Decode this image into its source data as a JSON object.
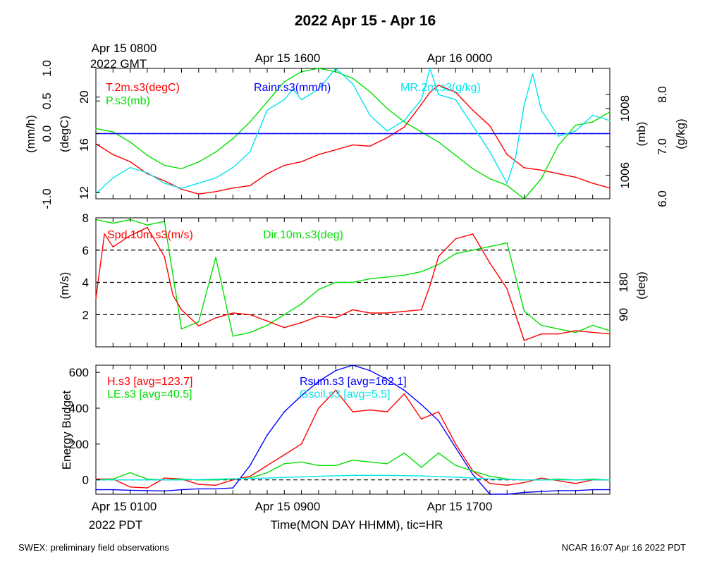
{
  "title": "2022 Apr 15 - Apr 16",
  "top_axis": {
    "first_label": [
      "Apr 15 0800",
      "2022 GMT"
    ],
    "labels": [
      "Apr 15 1600",
      "Apr 16 0000"
    ]
  },
  "bottom_axis": {
    "first_label": [
      "Apr 15 0100",
      "2022 PDT"
    ],
    "labels": [
      "Apr 15 0900",
      "Apr 15 1700"
    ],
    "xlabel": "Time(MON DAY HHMM), tic=HR"
  },
  "footer": {
    "left": "SWEX: preliminary field observations",
    "right": "NCAR 16:07 Apr 16 2022 PDT"
  },
  "colors": {
    "red": "#ff0000",
    "green": "#00e000",
    "blue": "#0000ff",
    "cyan": "#00e5ee",
    "black": "#000000"
  },
  "chart_data": [
    {
      "type": "line",
      "panel": "temperature-pressure-rain-mixing-ratio",
      "x_unit": "hours since Apr 15 0100 PDT",
      "xlim": [
        0,
        30
      ],
      "axes": {
        "rain": {
          "label": "(mm/h)",
          "ticks": [
            "-1.0",
            "0.0",
            "0.5",
            "1.0"
          ],
          "tick_values": [
            -1.0,
            0.0,
            0.5,
            1.0
          ],
          "ylim": [
            -1.0,
            1.0
          ]
        },
        "temp": {
          "label": "(degC)",
          "ticks": [
            "12",
            "16",
            "20"
          ],
          "tick_values": [
            12,
            16,
            20
          ],
          "ylim": [
            11.5,
            22.4
          ]
        },
        "press": {
          "label": "(mb)",
          "ticks": [
            "1006",
            "1008"
          ],
          "tick_values": [
            1006,
            1008
          ],
          "ylim": [
            1005.3,
            1009.2
          ]
        },
        "mr": {
          "label": "(g/kg)",
          "ticks": [
            "6.0",
            "7.0",
            "8.0"
          ],
          "tick_values": [
            6.0,
            7.0,
            8.0
          ],
          "ylim": [
            6.0,
            8.5
          ]
        }
      },
      "legend": [
        {
          "text": "T.2m.s3(degC)",
          "color": "red"
        },
        {
          "text": "P.s3(mb)",
          "color": "green"
        },
        {
          "text": "Rainr.s3(mm/h)",
          "color": "blue"
        },
        {
          "text": "MR.2m.s3(g/kg)",
          "color": "cyan"
        }
      ],
      "reference_lines": [
        {
          "axis": "rain",
          "value": 0.0,
          "style": "dashed-black"
        }
      ],
      "series": [
        {
          "name": "T.2m.s3(degC)",
          "axis": "temp",
          "color": "red",
          "x": [
            0,
            1,
            2,
            3,
            4,
            5,
            6,
            7,
            8,
            9,
            10,
            11,
            12,
            13,
            14,
            15,
            16,
            17,
            18,
            19,
            19.5,
            20,
            21,
            22,
            23,
            24,
            25,
            26,
            27,
            28,
            29,
            30
          ],
          "y": [
            16.1,
            15.2,
            14.6,
            13.6,
            13.0,
            12.3,
            11.9,
            12.1,
            12.4,
            12.6,
            13.6,
            14.3,
            14.6,
            15.2,
            15.6,
            16.0,
            15.9,
            16.6,
            17.5,
            19.4,
            20.4,
            21.0,
            20.4,
            18.9,
            17.6,
            15.2,
            14.1,
            13.9,
            13.6,
            13.3,
            12.8,
            12.4
          ]
        },
        {
          "name": "P.s3(mb)",
          "axis": "press",
          "color": "green",
          "x": [
            0,
            1,
            2,
            3,
            4,
            5,
            6,
            7,
            8,
            9,
            10,
            11,
            12,
            13,
            14,
            15,
            16,
            17,
            18,
            19,
            20,
            21,
            22,
            23,
            24,
            25,
            26,
            27,
            28,
            29,
            30
          ],
          "y": [
            1007.4,
            1007.3,
            1007.0,
            1006.6,
            1006.3,
            1006.2,
            1006.4,
            1006.7,
            1007.1,
            1007.6,
            1008.2,
            1008.8,
            1009.1,
            1009.2,
            1009.1,
            1008.9,
            1008.5,
            1008.0,
            1007.6,
            1007.3,
            1007.0,
            1006.6,
            1006.2,
            1005.9,
            1005.7,
            1005.3,
            1005.9,
            1006.9,
            1007.5,
            1007.6,
            1007.9
          ]
        },
        {
          "name": "Rainr.s3(mm/h)",
          "axis": "rain",
          "color": "blue",
          "x": [
            0,
            30
          ],
          "y": [
            0.0,
            0.0
          ]
        },
        {
          "name": "MR.2m.s3(g/kg)",
          "axis": "mr",
          "color": "cyan",
          "x": [
            0,
            1,
            2,
            3,
            4,
            5,
            6,
            7,
            8,
            9,
            10,
            11,
            11.5,
            12,
            13,
            14,
            15,
            16,
            17,
            18,
            19,
            19.5,
            20,
            21,
            22,
            23,
            24,
            24.5,
            25,
            25.5,
            26,
            27,
            28,
            29,
            30
          ],
          "y": [
            6.1,
            6.4,
            6.6,
            6.5,
            6.3,
            6.2,
            6.3,
            6.4,
            6.6,
            6.9,
            7.7,
            7.9,
            8.1,
            7.9,
            8.1,
            8.5,
            8.2,
            7.6,
            7.3,
            7.5,
            7.9,
            8.5,
            8.0,
            7.9,
            7.4,
            6.9,
            6.3,
            6.8,
            7.8,
            8.4,
            7.7,
            7.2,
            7.3,
            7.6,
            7.5
          ]
        }
      ]
    },
    {
      "type": "line",
      "panel": "wind",
      "x_unit": "hours since Apr 15 0100 PDT",
      "xlim": [
        0,
        30
      ],
      "axes": {
        "spd": {
          "label": "(m/s)",
          "ticks": [
            "2",
            "4",
            "6",
            "8"
          ],
          "tick_values": [
            2,
            4,
            6,
            8
          ],
          "ylim": [
            0,
            8
          ]
        },
        "dir": {
          "label": "(deg)",
          "ticks": [
            "90",
            "180"
          ],
          "tick_values": [
            90,
            180
          ],
          "ylim": [
            0,
            360
          ]
        }
      },
      "legend": [
        {
          "text": "Spd.10m.s3(m/s)",
          "color": "red"
        },
        {
          "text": "Dir.10m.s3(deg)",
          "color": "green"
        }
      ],
      "reference_lines": [
        {
          "axis": "spd",
          "value": 2,
          "style": "dashed-black"
        },
        {
          "axis": "spd",
          "value": 4,
          "style": "dashed-black"
        },
        {
          "axis": "spd",
          "value": 6,
          "style": "dashed-black"
        }
      ],
      "series": [
        {
          "name": "Spd.10m.s3(m/s)",
          "axis": "spd",
          "color": "red",
          "x": [
            0,
            0.5,
            1,
            2,
            3,
            4,
            4.5,
            5,
            6,
            7,
            8,
            9,
            10,
            11,
            12,
            13,
            14,
            15,
            16,
            17,
            18,
            19,
            19.5,
            20,
            21,
            22,
            23,
            24,
            25,
            26,
            27,
            28,
            29,
            30
          ],
          "y": [
            3.0,
            7.0,
            6.2,
            6.9,
            7.4,
            5.6,
            3.2,
            2.3,
            1.3,
            1.8,
            2.1,
            2.0,
            1.6,
            1.2,
            1.5,
            1.9,
            1.8,
            2.3,
            2.1,
            2.1,
            2.2,
            2.3,
            3.8,
            5.6,
            6.7,
            7.0,
            5.2,
            3.6,
            0.4,
            0.8,
            0.8,
            1.0,
            0.9,
            0.8
          ]
        },
        {
          "name": "Dir.10m.s3(deg)",
          "axis": "dir",
          "color": "green",
          "x": [
            0,
            1,
            2,
            3,
            4,
            5,
            6,
            7,
            8,
            9,
            10,
            11,
            12,
            13,
            14,
            15,
            16,
            17,
            18,
            19,
            20,
            21,
            22,
            23,
            24,
            25,
            26,
            27,
            28,
            29,
            30
          ],
          "y": [
            355,
            345,
            355,
            340,
            350,
            50,
            70,
            250,
            30,
            40,
            60,
            90,
            120,
            160,
            180,
            180,
            190,
            195,
            200,
            210,
            230,
            260,
            270,
            280,
            290,
            100,
            60,
            50,
            40,
            60,
            45
          ]
        }
      ]
    },
    {
      "type": "line",
      "panel": "energy-budget",
      "x_unit": "hours since Apr 15 0100 PDT",
      "xlim": [
        0,
        30
      ],
      "ylabel": "Energy Budget",
      "y_ticks": [
        "0",
        "200",
        "400",
        "600"
      ],
      "y_tick_values": [
        0,
        200,
        400,
        600
      ],
      "ylim": [
        -80,
        640
      ],
      "legend": [
        {
          "text": "H.s3 [avg=123.7]",
          "color": "red"
        },
        {
          "text": "LE.s3 [avg=40.5]",
          "color": "green"
        },
        {
          "text": "Rsum.s3 [avg=162.1]",
          "color": "blue"
        },
        {
          "text": "Gsoil.s3 [avg=5.5]",
          "color": "cyan"
        }
      ],
      "reference_lines": [
        {
          "value": 0,
          "style": "dashed-black"
        }
      ],
      "series": [
        {
          "name": "Rsum.s3 [avg=162.1]",
          "color": "blue",
          "x": [
            0,
            1,
            2,
            3,
            4,
            5,
            6,
            7,
            8,
            9,
            10,
            11,
            12,
            13,
            14,
            15,
            16,
            17,
            18,
            19,
            20,
            21,
            22,
            23,
            24,
            25,
            26,
            27,
            28,
            29,
            30
          ],
          "y": [
            -55,
            -55,
            -58,
            -60,
            -62,
            -55,
            -50,
            -50,
            -45,
            80,
            250,
            380,
            470,
            550,
            610,
            650,
            610,
            560,
            500,
            420,
            330,
            180,
            30,
            -80,
            -80,
            -70,
            -65,
            -60,
            -60,
            -55,
            -55
          ]
        },
        {
          "name": "H.s3 [avg=123.7]",
          "color": "red",
          "x": [
            0,
            1,
            2,
            3,
            4,
            5,
            6,
            7,
            8,
            9,
            10,
            11,
            12,
            13,
            14,
            15,
            16,
            17,
            18,
            19,
            20,
            21,
            22,
            23,
            24,
            25,
            26,
            27,
            28,
            29,
            30
          ],
          "y": [
            5,
            5,
            -40,
            -45,
            10,
            5,
            -25,
            -30,
            0,
            20,
            80,
            140,
            200,
            400,
            500,
            380,
            390,
            380,
            480,
            340,
            380,
            200,
            50,
            -20,
            -30,
            -15,
            10,
            -5,
            -20,
            0,
            0
          ]
        },
        {
          "name": "LE.s3 [avg=40.5]",
          "color": "green",
          "x": [
            0,
            1,
            2,
            3,
            4,
            5,
            6,
            7,
            8,
            9,
            10,
            11,
            12,
            13,
            14,
            15,
            16,
            17,
            18,
            19,
            20,
            21,
            22,
            23,
            24,
            25,
            26,
            27,
            28,
            29,
            30
          ],
          "y": [
            0,
            5,
            40,
            5,
            0,
            5,
            0,
            0,
            5,
            10,
            40,
            90,
            100,
            80,
            80,
            110,
            100,
            90,
            150,
            70,
            150,
            80,
            50,
            20,
            5,
            0,
            0,
            5,
            0,
            5,
            0
          ]
        },
        {
          "name": "Gsoil.s3 [avg=5.5]",
          "color": "cyan",
          "x": [
            0,
            5,
            10,
            13,
            15,
            17,
            19,
            21,
            23,
            25,
            30
          ],
          "y": [
            0,
            0,
            10,
            20,
            25,
            25,
            22,
            15,
            5,
            0,
            0
          ]
        }
      ]
    }
  ]
}
